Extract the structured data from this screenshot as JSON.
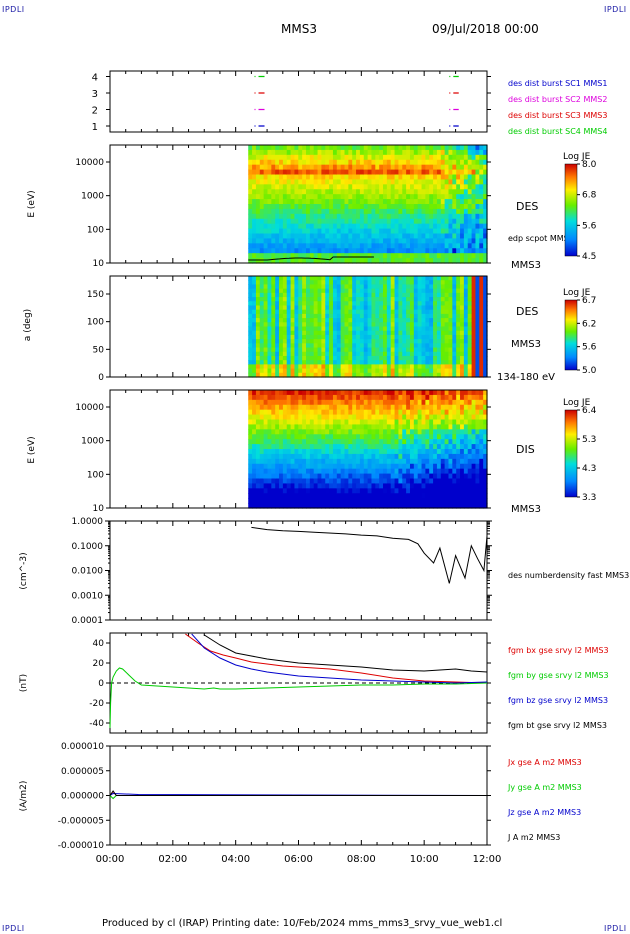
{
  "header": {
    "corner_tl": "IPDLI",
    "corner_tr": "IPDLI",
    "corner_bl": "IPDLI",
    "corner_br": "IPDLI",
    "title": "MMS3",
    "date": "09/Jul/2018 00:00"
  },
  "footer": {
    "text": "Produced by cl (IRAP)   Printing date: 10/Feb/2024   mms_mms3_srvy_vue_web1.cl"
  },
  "colors": {
    "blue": "#0000cc",
    "magenta": "#dd00dd",
    "red": "#dd0000",
    "green": "#00cc00",
    "black": "#000000"
  },
  "chart_data": [
    {
      "type": "scatter",
      "name": "burst-availability",
      "yticks": [
        "4",
        "3",
        "2",
        "1"
      ],
      "xlim": [
        0,
        12
      ],
      "legend": [
        "des dist burst SC1 MMS1",
        "des dist burst SC2 MMS2",
        "des dist burst SC3 MMS3",
        "des dist burst SC4 MMS4"
      ],
      "series": [
        {
          "name": "des dist burst SC1 MMS1",
          "level": 1,
          "intervals": [
            [
              4.6,
              4.95
            ],
            [
              10.8,
              11.1
            ]
          ]
        },
        {
          "name": "des dist burst SC2 MMS2",
          "level": 2,
          "intervals": [
            [
              4.6,
              4.95
            ],
            [
              10.8,
              11.1
            ]
          ]
        },
        {
          "name": "des dist burst SC3 MMS3",
          "level": 3,
          "intervals": [
            [
              4.6,
              4.95
            ],
            [
              10.8,
              11.1
            ]
          ]
        },
        {
          "name": "des dist burst SC4 MMS4",
          "level": 4,
          "intervals": [
            [
              4.6,
              4.95
            ],
            [
              10.8,
              11.1
            ]
          ]
        }
      ]
    },
    {
      "type": "heatmap",
      "name": "des-energy-spectrogram",
      "ylabel": "E (eV)",
      "yticks": [
        "10000",
        "1000",
        "100",
        "10"
      ],
      "xlim": [
        0,
        12
      ],
      "data_start": 4.4,
      "label": "DES",
      "sub_label": "MMS3",
      "overlay_label": "edp scpot MMS3",
      "colorbar": {
        "title": "Log JE",
        "ticks": [
          "8.0",
          "6.8",
          "5.6",
          "4.5"
        ],
        "range": [
          4.5,
          8.0
        ]
      }
    },
    {
      "type": "heatmap",
      "name": "des-pitch-angle",
      "ylabel": "a (deg)",
      "yticks": [
        "150",
        "100",
        "50",
        "0"
      ],
      "xlim": [
        0,
        12
      ],
      "data_start": 4.4,
      "label": "DES",
      "sub_label": "MMS3",
      "energy_range": "134-180 eV",
      "colorbar": {
        "title": "Log JE",
        "ticks": [
          "6.7",
          "6.2",
          "5.6",
          "5.0"
        ],
        "range": [
          5.0,
          6.7
        ]
      }
    },
    {
      "type": "heatmap",
      "name": "dis-energy-spectrogram",
      "ylabel": "E (eV)",
      "yticks": [
        "10000",
        "1000",
        "100",
        "10"
      ],
      "xlim": [
        0,
        12
      ],
      "data_start": 4.4,
      "label": "DIS",
      "sub_label": "MMS3",
      "colorbar": {
        "title": "Log JE",
        "ticks": [
          "6.4",
          "5.3",
          "4.3",
          "3.3"
        ],
        "range": [
          3.3,
          6.4
        ]
      }
    },
    {
      "type": "line",
      "name": "density",
      "ylabel": "(cm^-3)",
      "yscale": "log",
      "yticks": [
        "1.0000",
        "0.1000",
        "0.0100",
        "0.0010",
        "0.0001"
      ],
      "ylim": [
        0.0001,
        1.0
      ],
      "xlim": [
        0,
        12
      ],
      "series": [
        {
          "name": "des numberdensity fast MMS3",
          "x": [
            7.0,
            4.5,
            5.0,
            5.5,
            6.0,
            6.5,
            7.5,
            8.0,
            8.5,
            9.0,
            9.5,
            9.8,
            10.0,
            10.3,
            10.5,
            10.8,
            11.0,
            11.3,
            11.5,
            11.7,
            11.9,
            12.0
          ],
          "y": [
            0.33,
            0.55,
            0.45,
            0.4,
            0.38,
            0.35,
            0.3,
            0.27,
            0.25,
            0.2,
            0.18,
            0.12,
            0.05,
            0.02,
            0.08,
            0.003,
            0.04,
            0.005,
            0.1,
            0.03,
            0.01,
            0.25
          ]
        }
      ]
    },
    {
      "type": "line",
      "name": "magnetic-field",
      "ylabel": "(nT)",
      "yticks": [
        "40",
        "20",
        "0",
        "-20",
        "-40"
      ],
      "ylim": [
        -50,
        50
      ],
      "xlim": [
        0,
        12
      ],
      "series": [
        {
          "name": "fgm bx gse srvy l2 MMS3",
          "color": "#dd0000",
          "x": [
            2.4,
            2.8,
            3.2,
            3.6,
            4.0,
            4.5,
            5.0,
            5.5,
            6.0,
            6.5,
            7.0,
            8.0,
            9.0,
            10.0,
            11.0,
            12.0
          ],
          "y": [
            49,
            40,
            32,
            28,
            25,
            21,
            19,
            17,
            16,
            15,
            14,
            10,
            5,
            2,
            1,
            0
          ]
        },
        {
          "name": "fgm by gse srvy l2 MMS3",
          "color": "#00cc00",
          "x": [
            0.0,
            0.02,
            0.05,
            0.1,
            0.2,
            0.3,
            0.4,
            0.6,
            0.8,
            1.0,
            1.5,
            2.0,
            2.5,
            3.0,
            3.3,
            3.5,
            4.0,
            5.0,
            6.0,
            7.0,
            8.0,
            9.0,
            10.0,
            11.0,
            12.0
          ],
          "y": [
            -45,
            -20,
            0,
            6,
            12,
            15,
            14,
            8,
            2,
            -2,
            -3,
            -4,
            -5,
            -6,
            -5,
            -6,
            -6,
            -5,
            -4,
            -3,
            -2,
            -2,
            -1,
            -1,
            0
          ]
        },
        {
          "name": "fgm bz gse srvy l2 MMS3",
          "color": "#0000cc",
          "x": [
            2.6,
            3.0,
            3.5,
            4.0,
            4.5,
            5.0,
            5.5,
            6.0,
            7.0,
            8.0,
            9.0,
            10.0,
            11.0,
            12.0
          ],
          "y": [
            49,
            35,
            25,
            18,
            14,
            11,
            9,
            7,
            5,
            3,
            2,
            1,
            0,
            1
          ]
        },
        {
          "name": "fgm bt gse srvy l2 MMS3",
          "color": "#000000",
          "x": [
            3.0,
            3.5,
            4.0,
            4.5,
            5.0,
            5.5,
            6.0,
            7.0,
            8.0,
            9.0,
            10.0,
            11.0,
            11.5,
            12.0
          ],
          "y": [
            48,
            38,
            30,
            27,
            24,
            22,
            20,
            18,
            16,
            13,
            12,
            14,
            12,
            11
          ]
        }
      ]
    },
    {
      "type": "line",
      "name": "current-density",
      "ylabel": "(A/m2)",
      "yticks": [
        "0.000010",
        "0.000005",
        "0.000000",
        "-0.000005",
        "-0.000010"
      ],
      "ylim": [
        -1e-05,
        1e-05
      ],
      "xlim": [
        0,
        12
      ],
      "xticks": [
        "00:00",
        "02:00",
        "04:00",
        "06:00",
        "08:00",
        "10:00",
        "12:00"
      ],
      "series": [
        {
          "name": "Jx gse A m2 MMS3",
          "color": "#dd0000",
          "x": [
            0,
            0.1,
            0.2,
            12
          ],
          "y": [
            0,
            8e-07,
            0,
            0
          ]
        },
        {
          "name": "Jy gse A m2 MMS3",
          "color": "#00cc00",
          "x": [
            0,
            0.1,
            0.2,
            12
          ],
          "y": [
            0,
            -6e-07,
            0,
            0
          ]
        },
        {
          "name": "Jz gse A m2 MMS3",
          "color": "#0000cc",
          "x": [
            0,
            0.1,
            0.9,
            12
          ],
          "y": [
            0,
            4e-07,
            2e-07,
            0
          ]
        },
        {
          "name": "J A m2 MMS3",
          "color": "#000000",
          "x": [
            0,
            0.1,
            0.2,
            12
          ],
          "y": [
            0,
            9e-07,
            0,
            0
          ]
        }
      ]
    }
  ]
}
